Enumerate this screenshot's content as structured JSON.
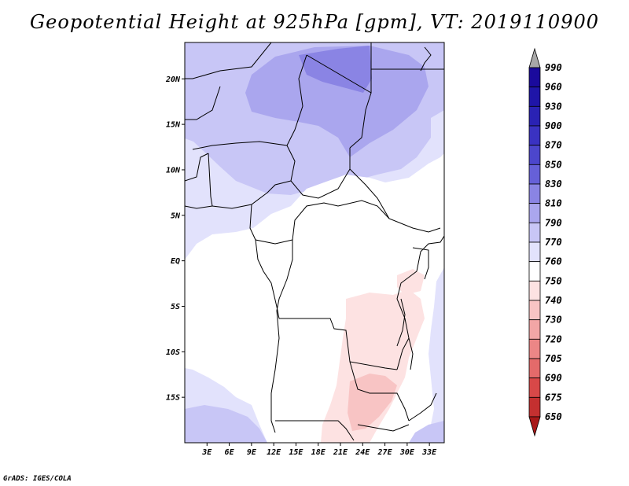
{
  "title": "Geopotential Height at 925hPa [gpm], VT: 2019110900",
  "credit": "GrADS: IGES/COLA",
  "map": {
    "variable": "Geopotential Height",
    "level": "925hPa",
    "units": "gpm",
    "valid_time": "2019110900",
    "lon_range": [
      0,
      35
    ],
    "lat_range": [
      -20,
      24
    ],
    "lat_ticks": [
      {
        "value": 20,
        "label": "20N"
      },
      {
        "value": 15,
        "label": "15N"
      },
      {
        "value": 10,
        "label": "10N"
      },
      {
        "value": 5,
        "label": "5N"
      },
      {
        "value": 0,
        "label": "EQ"
      },
      {
        "value": -5,
        "label": "5S"
      },
      {
        "value": -10,
        "label": "10S"
      },
      {
        "value": -15,
        "label": "15S"
      }
    ],
    "lon_ticks": [
      {
        "value": 3,
        "label": "3E"
      },
      {
        "value": 6,
        "label": "6E"
      },
      {
        "value": 9,
        "label": "9E"
      },
      {
        "value": 12,
        "label": "12E"
      },
      {
        "value": 15,
        "label": "15E"
      },
      {
        "value": 18,
        "label": "18E"
      },
      {
        "value": 21,
        "label": "21E"
      },
      {
        "value": 24,
        "label": "24E"
      },
      {
        "value": 27,
        "label": "27E"
      },
      {
        "value": 30,
        "label": "30E"
      },
      {
        "value": 33,
        "label": "33E"
      }
    ]
  },
  "colorbar": {
    "levels": [
      {
        "label": "990",
        "color": "#1a0a9c"
      },
      {
        "label": "960",
        "color": "#1f15a8"
      },
      {
        "label": "930",
        "color": "#2a22b4"
      },
      {
        "label": "900",
        "color": "#3a32c2"
      },
      {
        "label": "870",
        "color": "#4c46cc"
      },
      {
        "label": "850",
        "color": "#6660d8"
      },
      {
        "label": "830",
        "color": "#8a84e4"
      },
      {
        "label": "810",
        "color": "#aaa6ee"
      },
      {
        "label": "790",
        "color": "#c8c6f6"
      },
      {
        "label": "770",
        "color": "#e2e2fc"
      },
      {
        "label": "760",
        "color": "#ffffff"
      },
      {
        "label": "750",
        "color": "#fde2e2"
      },
      {
        "label": "740",
        "color": "#f8c4c4"
      },
      {
        "label": "730",
        "color": "#f2a6a6"
      },
      {
        "label": "720",
        "color": "#ec8686"
      },
      {
        "label": "705",
        "color": "#e46a6a"
      },
      {
        "label": "690",
        "color": "#d84848"
      },
      {
        "label": "675",
        "color": "#c43030"
      },
      {
        "label": "650",
        "color": "#a81818"
      }
    ],
    "over_color": "#a8a8a8",
    "under_color": "#a81818"
  }
}
